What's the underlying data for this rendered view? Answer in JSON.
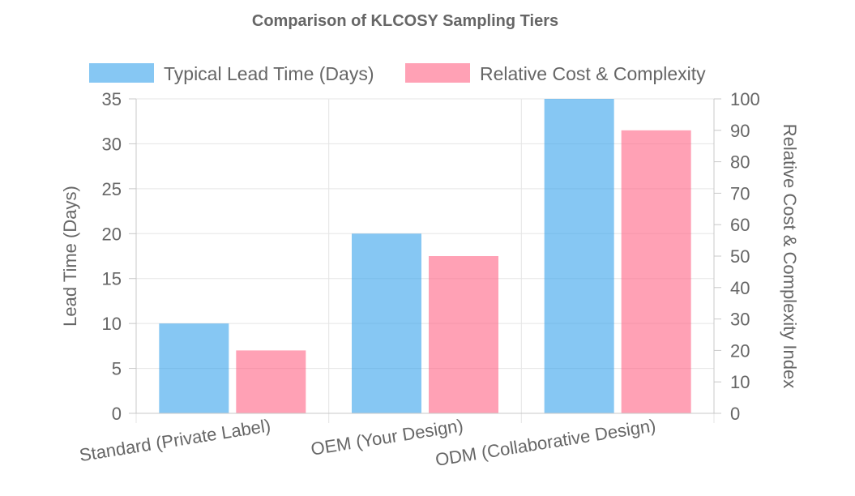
{
  "chart_data": {
    "type": "bar",
    "title": "Comparison of KLCOSY Sampling Tiers",
    "categories": [
      "Standard (Private Label)",
      "OEM (Your Design)",
      "ODM (Collaborative Design)"
    ],
    "series": [
      {
        "name": "Typical Lead Time (Days)",
        "axis": "left",
        "values": [
          10,
          20,
          35
        ],
        "color": "#36A2EB",
        "fill": "rgba(54,162,235,0.6)"
      },
      {
        "name": "Relative Cost & Complexity",
        "axis": "right",
        "values": [
          20,
          50,
          90
        ],
        "color": "#FF6384",
        "fill": "rgba(255,99,132,0.6)"
      }
    ],
    "y_left": {
      "label": "Lead Time (Days)",
      "min": 0,
      "max": 35,
      "ticks": [
        0,
        5,
        10,
        15,
        20,
        25,
        30,
        35
      ]
    },
    "y_right": {
      "label": "Relative Cost & Complexity Index",
      "min": 0,
      "max": 100,
      "ticks": [
        0,
        10,
        20,
        30,
        40,
        50,
        60,
        70,
        80,
        90,
        100
      ]
    },
    "grid": true,
    "legend_position": "top"
  },
  "colors": {
    "text": "#666666",
    "grid": "#e5e5e5",
    "axis": "#c8c8c8"
  }
}
